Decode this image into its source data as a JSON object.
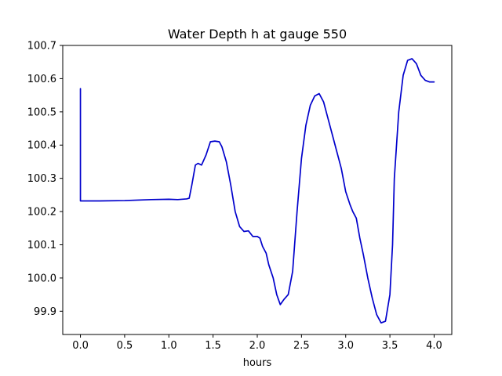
{
  "chart_data": {
    "type": "line",
    "title": "Water Depth h at gauge 550",
    "xlabel": "hours",
    "ylabel": "",
    "xlim": [
      -0.2,
      4.2
    ],
    "ylim": [
      99.83,
      100.7
    ],
    "xticks": [
      0.0,
      0.5,
      1.0,
      1.5,
      2.0,
      2.5,
      3.0,
      3.5,
      4.0
    ],
    "xtick_labels": [
      "0.0",
      "0.5",
      "1.0",
      "1.5",
      "2.0",
      "2.5",
      "3.0",
      "3.5",
      "4.0"
    ],
    "yticks": [
      99.9,
      100.0,
      100.1,
      100.2,
      100.3,
      100.4,
      100.5,
      100.6,
      100.7
    ],
    "ytick_labels": [
      "99.9",
      "100.0",
      "100.1",
      "100.2",
      "100.3",
      "100.4",
      "100.5",
      "100.6",
      "100.7"
    ],
    "grid": false,
    "color": "#0000cc",
    "series": [
      {
        "x": [
          0.0,
          0.0,
          0.005,
          0.2,
          0.5,
          0.8,
          1.0,
          1.1,
          1.2,
          1.23,
          1.26,
          1.3,
          1.33,
          1.37,
          1.42,
          1.47,
          1.52,
          1.57,
          1.6,
          1.65,
          1.7,
          1.75,
          1.8,
          1.85,
          1.9,
          1.95,
          2.0,
          2.03,
          2.06,
          2.1,
          2.13,
          2.18,
          2.22,
          2.26,
          2.3,
          2.35,
          2.4,
          2.45,
          2.5,
          2.55,
          2.6,
          2.65,
          2.7,
          2.75,
          2.8,
          2.85,
          2.9,
          2.95,
          3.0,
          3.05,
          3.08,
          3.12,
          3.16,
          3.2,
          3.25,
          3.3,
          3.35,
          3.4,
          3.45,
          3.5,
          3.53,
          3.55,
          3.6,
          3.65,
          3.7,
          3.75,
          3.8,
          3.85,
          3.9,
          3.95,
          4.0
        ],
        "y": [
          100.57,
          100.232,
          100.232,
          100.232,
          100.233,
          100.236,
          100.237,
          100.236,
          100.238,
          100.24,
          100.28,
          100.34,
          100.345,
          100.34,
          100.37,
          100.41,
          100.412,
          100.41,
          100.395,
          100.35,
          100.28,
          100.2,
          100.155,
          100.14,
          100.142,
          100.125,
          100.125,
          100.12,
          100.095,
          100.075,
          100.04,
          100.0,
          99.95,
          99.92,
          99.935,
          99.95,
          100.02,
          100.2,
          100.36,
          100.46,
          100.52,
          100.548,
          100.555,
          100.53,
          100.48,
          100.43,
          100.38,
          100.33,
          100.26,
          100.22,
          100.2,
          100.18,
          100.12,
          100.07,
          100.0,
          99.94,
          99.89,
          99.865,
          99.87,
          99.95,
          100.1,
          100.3,
          100.5,
          100.61,
          100.655,
          100.66,
          100.645,
          100.61,
          100.595,
          100.59,
          100.59
        ]
      }
    ]
  }
}
